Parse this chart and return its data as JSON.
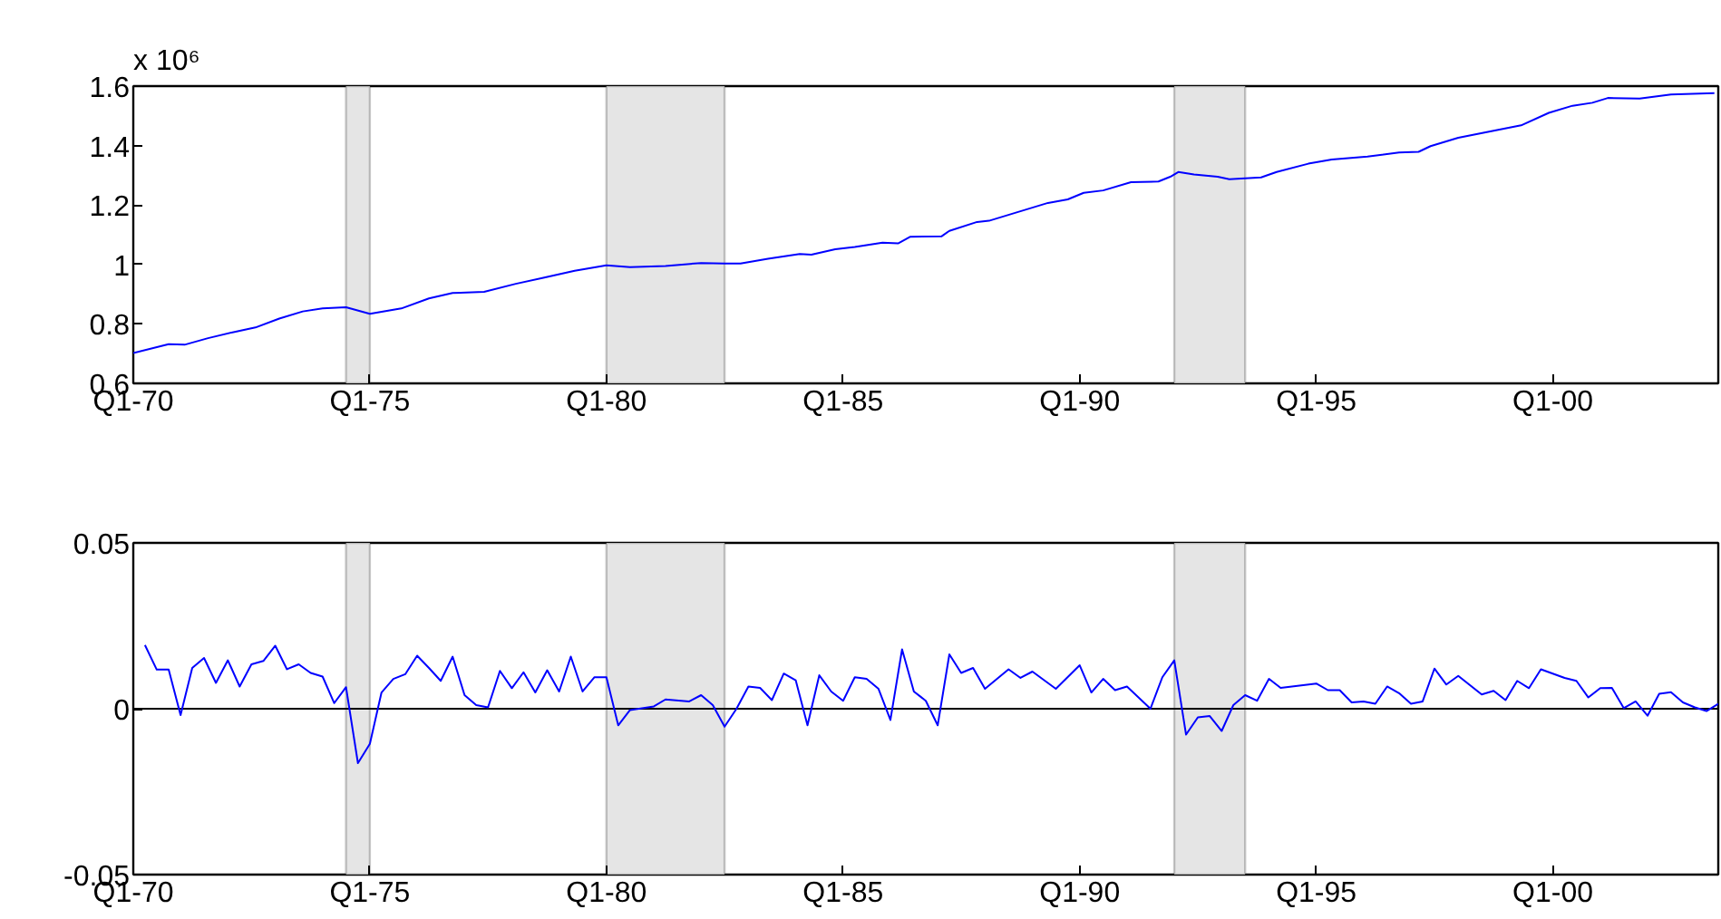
{
  "chart_data": [
    {
      "type": "line",
      "annotations": [
        "x 10⁶"
      ],
      "x": [
        "1970-01",
        "1970-10",
        "1971-02",
        "1971-08",
        "1972-03",
        "1972-08",
        "1973-02",
        "1973-08",
        "1974-01",
        "1974-07",
        "1975-01",
        "1975-09",
        "1976-04",
        "1976-10",
        "1977-06",
        "1978-02",
        "1978-09",
        "1979-05",
        "1980-01",
        "1980-07",
        "1981-04",
        "1982-01",
        "1982-07",
        "1982-11",
        "1983-06",
        "1984-02",
        "1984-05",
        "1984-11",
        "1985-04",
        "1985-11",
        "1986-03",
        "1986-06",
        "1987-02",
        "1987-04",
        "1987-11",
        "1988-02",
        "1988-09",
        "1989-05",
        "1989-10",
        "1990-02",
        "1990-07",
        "1991-02",
        "1991-09",
        "1991-12",
        "1992-02",
        "1992-06",
        "1992-12",
        "1993-03",
        "1993-11",
        "1994-03",
        "1994-11",
        "1995-05",
        "1996-02",
        "1996-10",
        "1997-03",
        "1997-06",
        "1998-01",
        "1998-10",
        "1999-05",
        "1999-12",
        "2000-06",
        "2000-11",
        "2001-03",
        "2001-11",
        "2002-07",
        "2003-06"
      ],
      "series": [
        {
          "color": "#0000ff",
          "values": [
            0.702,
            0.732,
            0.73,
            0.752,
            0.774,
            0.788,
            0.818,
            0.842,
            0.852,
            0.856,
            0.834,
            0.852,
            0.886,
            0.904,
            0.908,
            0.935,
            0.955,
            0.979,
            0.997,
            0.991,
            0.995,
            1.005,
            1.003,
            1.003,
            1.019,
            1.035,
            1.033,
            1.051,
            1.059,
            1.073,
            1.071,
            1.093,
            1.095,
            1.113,
            1.143,
            1.147,
            1.175,
            1.207,
            1.219,
            1.241,
            1.249,
            1.277,
            1.279,
            1.295,
            1.311,
            1.303,
            1.295,
            1.287,
            1.293,
            1.311,
            1.339,
            1.353,
            1.363,
            1.377,
            1.379,
            1.398,
            1.426,
            1.45,
            1.468,
            1.51,
            1.534,
            1.544,
            1.56,
            1.558,
            1.572,
            1.576
          ]
        }
      ],
      "xlim": [
        "1970-01",
        "2003-07"
      ],
      "xticks": [
        {
          "value": "1970-01",
          "label": "Q1-70"
        },
        {
          "value": "1975-01",
          "label": "Q1-75"
        },
        {
          "value": "1980-01",
          "label": "Q1-80"
        },
        {
          "value": "1985-01",
          "label": "Q1-85"
        },
        {
          "value": "1990-01",
          "label": "Q1-90"
        },
        {
          "value": "1995-01",
          "label": "Q1-95"
        },
        {
          "value": "2000-01",
          "label": "Q1-00"
        }
      ],
      "ylim": [
        0.6,
        1.6
      ],
      "yticks": [
        0.6,
        0.8,
        1,
        1.2,
        1.4,
        1.6
      ],
      "bands": [
        {
          "axis": "x",
          "from": "1974-07",
          "to": "1975-01",
          "color": "#e5e5e5"
        },
        {
          "axis": "x",
          "from": "1980-01",
          "to": "1982-07",
          "color": "#e5e5e5"
        },
        {
          "axis": "x",
          "from": "1992-01",
          "to": "1993-07",
          "color": "#e5e5e5"
        }
      ]
    },
    {
      "type": "line",
      "x": [
        "1970-04",
        "1970-07",
        "1970-10",
        "1971-01",
        "1971-04",
        "1971-07",
        "1971-10",
        "1972-01",
        "1972-04",
        "1972-07",
        "1972-10",
        "1973-01",
        "1973-04",
        "1973-07",
        "1973-10",
        "1974-01",
        "1974-04",
        "1974-07",
        "1974-10",
        "1975-01",
        "1975-04",
        "1975-07",
        "1975-10",
        "1976-01",
        "1976-04",
        "1976-07",
        "1976-10",
        "1977-01",
        "1977-04",
        "1977-07",
        "1977-10",
        "1978-01",
        "1978-04",
        "1978-07",
        "1978-10",
        "1979-01",
        "1979-04",
        "1979-07",
        "1979-10",
        "1980-01",
        "1980-04",
        "1980-07",
        "1981-01",
        "1981-04",
        "1981-10",
        "1982-01",
        "1982-04",
        "1982-07",
        "1982-10",
        "1983-01",
        "1983-04",
        "1983-07",
        "1983-10",
        "1984-01",
        "1984-04",
        "1984-07",
        "1984-10",
        "1985-01",
        "1985-04",
        "1985-07",
        "1985-10",
        "1986-01",
        "1986-04",
        "1986-07",
        "1986-10",
        "1987-01",
        "1987-04",
        "1987-07",
        "1987-10",
        "1988-01",
        "1988-07",
        "1988-10",
        "1989-01",
        "1989-07",
        "1990-01",
        "1990-04",
        "1990-07",
        "1990-10",
        "1991-01",
        "1991-07",
        "1991-10",
        "1992-01",
        "1992-04",
        "1992-07",
        "1992-10",
        "1993-01",
        "1993-04",
        "1993-07",
        "1993-10",
        "1994-01",
        "1994-04",
        "1995-01",
        "1995-04",
        "1995-07",
        "1995-10",
        "1996-01",
        "1996-04",
        "1996-07",
        "1996-10",
        "1997-01",
        "1997-04",
        "1997-07",
        "1997-10",
        "1998-01",
        "1998-07",
        "1998-10",
        "1999-01",
        "1999-04",
        "1999-07",
        "1999-10",
        "2000-04",
        "2000-07",
        "2000-10",
        "2001-01",
        "2001-04",
        "2001-07",
        "2001-10",
        "2002-01",
        "2002-04",
        "2002-07",
        "2002-10",
        "2003-01",
        "2003-04",
        "2003-07"
      ],
      "series": [
        {
          "color": "#0000ff",
          "values": [
            0.0192,
            0.0118,
            0.0118,
            -0.0019,
            0.0123,
            0.0153,
            0.0078,
            0.0146,
            0.0067,
            0.0134,
            0.0144,
            0.019,
            0.0119,
            0.0134,
            0.0108,
            0.0097,
            0.0017,
            0.0065,
            -0.0164,
            -0.0106,
            0.0049,
            0.009,
            0.0104,
            0.016,
            0.0123,
            0.0084,
            0.0157,
            0.0041,
            0.0011,
            0.0004,
            0.0114,
            0.0062,
            0.011,
            0.0049,
            0.0116,
            0.0052,
            0.0157,
            0.0052,
            0.0095,
            0.0095,
            -0.005,
            -0.0004,
            0.0007,
            0.0028,
            0.0022,
            0.0041,
            0.0011,
            -0.0054,
            0.0,
            0.0067,
            0.0063,
            0.0026,
            0.0106,
            0.0086,
            -0.005,
            0.0101,
            0.0052,
            0.0024,
            0.0095,
            0.009,
            0.006,
            -0.0034,
            0.0179,
            0.0052,
            0.0024,
            -0.005,
            0.0164,
            0.0108,
            0.0123,
            0.006,
            0.0119,
            0.0093,
            0.0112,
            0.006,
            0.0131,
            0.0049,
            0.009,
            0.0056,
            0.0067,
            0.0,
            0.0095,
            0.0146,
            -0.0078,
            -0.0026,
            -0.0022,
            -0.0067,
            0.0011,
            0.0041,
            0.0024,
            0.009,
            0.0063,
            0.0076,
            0.0056,
            0.0056,
            0.0019,
            0.0022,
            0.0015,
            0.0067,
            0.0047,
            0.0015,
            0.0022,
            0.0121,
            0.0073,
            0.0099,
            0.0043,
            0.0054,
            0.0026,
            0.0084,
            0.0062,
            0.0119,
            0.0093,
            0.0084,
            0.0034,
            0.0062,
            0.0063,
            0.0002,
            0.0022,
            -0.0021,
            0.0045,
            0.005,
            0.0019,
            0.0004,
            -0.0007,
            0.0015
          ]
        }
      ],
      "xlim": [
        "1970-01",
        "2003-07"
      ],
      "xticks": [
        {
          "value": "1970-01",
          "label": "Q1-70"
        },
        {
          "value": "1975-01",
          "label": "Q1-75"
        },
        {
          "value": "1980-01",
          "label": "Q1-80"
        },
        {
          "value": "1985-01",
          "label": "Q1-85"
        },
        {
          "value": "1990-01",
          "label": "Q1-90"
        },
        {
          "value": "1995-01",
          "label": "Q1-95"
        },
        {
          "value": "2000-01",
          "label": "Q1-00"
        }
      ],
      "ylim": [
        -0.05,
        0.05
      ],
      "yticks": [
        -0.05,
        0,
        0.05
      ],
      "ref_lines": [
        {
          "axis": "y",
          "value": 0,
          "color": "#000000"
        }
      ],
      "bands": [
        {
          "axis": "x",
          "from": "1974-07",
          "to": "1975-01",
          "color": "#e5e5e5"
        },
        {
          "axis": "x",
          "from": "1980-01",
          "to": "1982-07",
          "color": "#e5e5e5"
        },
        {
          "axis": "x",
          "from": "1992-01",
          "to": "1993-07",
          "color": "#e5e5e5"
        }
      ]
    }
  ]
}
